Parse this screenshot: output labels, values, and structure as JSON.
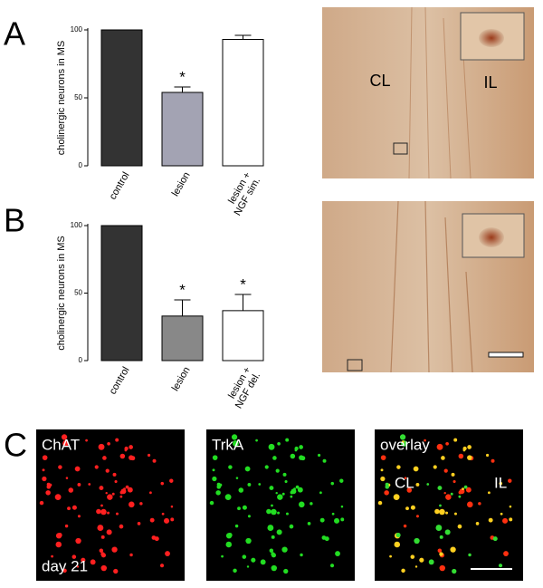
{
  "panel_labels": [
    "A",
    "B",
    "C"
  ],
  "chart_data": [
    {
      "type": "bar",
      "y_label": "cholinergic neurons in MS",
      "categories": [
        "control",
        "lesion",
        "lesion +\nNGF sim."
      ],
      "values": [
        100,
        54,
        93
      ],
      "errors": [
        0,
        4,
        3
      ],
      "colors": [
        "#333333",
        "#a3a3b3",
        "#ffffff"
      ],
      "markers": [
        null,
        "*",
        null
      ],
      "ylim": [
        0,
        100
      ],
      "yticks": [
        0,
        50,
        100
      ]
    },
    {
      "type": "bar",
      "y_label": "cholinergic neurons in MS",
      "categories": [
        "control",
        "lesion",
        "lesion +\nNGF del."
      ],
      "values": [
        100,
        33,
        37
      ],
      "errors": [
        0,
        12,
        12
      ],
      "colors": [
        "#333333",
        "#888888",
        "#ffffff"
      ],
      "markers": [
        null,
        "*",
        "*"
      ],
      "ylim": [
        0,
        100
      ],
      "yticks": [
        0,
        50,
        100
      ]
    }
  ],
  "image_labels": {
    "a": [
      "CL",
      "IL"
    ],
    "c": [
      {
        "title": "ChAT",
        "labels": [
          "day 21"
        ]
      },
      {
        "title": "TrkA"
      },
      {
        "title": "overlay",
        "labels": [
          "CL",
          "IL"
        ]
      }
    ]
  }
}
